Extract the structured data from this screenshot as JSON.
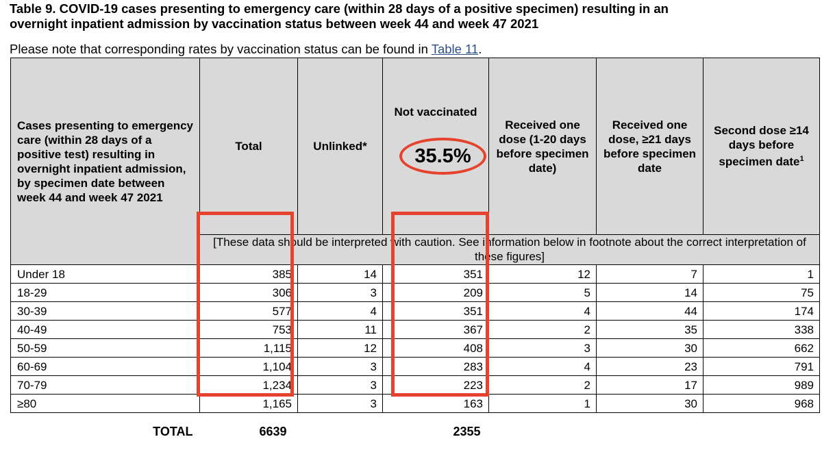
{
  "title_line1": "Table 9. COVID-19 cases presenting to emergency care (within 28 days of a positive specimen) resulting in an",
  "title_line2": "overnight inpatient admission by vaccination status between week 44 and week 47 2021",
  "note_text": "Please note that corresponding rates by vaccination status can be found in ",
  "note_link": "Table 11",
  "note_end": ".",
  "headers": {
    "col0": "Cases presenting to emergency care (within 28 days of a positive test) resulting in overnight inpatient admission, by specimen date between week 44 and week 47 2021",
    "col1": "Total",
    "col2": "Unlinked*",
    "col3": "Not vaccinated",
    "col4": "Received one dose (1-20 days before specimen date)",
    "col5": "Received one dose, ≥21 days before specimen date",
    "col6": "Second dose ≥14 days before specimen date",
    "col6_sup": "1"
  },
  "caution": "[These data should be interpreted with caution. See information below in footnote about the correct interpretation of these figures]",
  "rows": [
    {
      "age": "Under 18",
      "total": "385",
      "unlinked": "14",
      "not_vaccinated": "351",
      "one_dose_1_20": "12",
      "one_dose_21": "7",
      "second_dose": "1"
    },
    {
      "age": "18-29",
      "total": "306",
      "unlinked": "3",
      "not_vaccinated": "209",
      "one_dose_1_20": "5",
      "one_dose_21": "14",
      "second_dose": "75"
    },
    {
      "age": "30-39",
      "total": "577",
      "unlinked": "4",
      "not_vaccinated": "351",
      "one_dose_1_20": "4",
      "one_dose_21": "44",
      "second_dose": "174"
    },
    {
      "age": "40-49",
      "total": "753",
      "unlinked": "11",
      "not_vaccinated": "367",
      "one_dose_1_20": "2",
      "one_dose_21": "35",
      "second_dose": "338"
    },
    {
      "age": "50-59",
      "total": "1,115",
      "unlinked": "12",
      "not_vaccinated": "408",
      "one_dose_1_20": "3",
      "one_dose_21": "30",
      "second_dose": "662"
    },
    {
      "age": "60-69",
      "total": "1,104",
      "unlinked": "3",
      "not_vaccinated": "283",
      "one_dose_1_20": "4",
      "one_dose_21": "23",
      "second_dose": "791"
    },
    {
      "age": "70-79",
      "total": "1,234",
      "unlinked": "3",
      "not_vaccinated": "223",
      "one_dose_1_20": "2",
      "one_dose_21": "17",
      "second_dose": "989"
    },
    {
      "age": "≥80",
      "total": "1,165",
      "unlinked": "3",
      "not_vaccinated": "163",
      "one_dose_1_20": "1",
      "one_dose_21": "30",
      "second_dose": "968"
    }
  ],
  "total_label": "TOTAL",
  "total_value": "6639",
  "total_not_vaccinated": "2355",
  "annotation_percent": "35.5%",
  "highlight_color": "#e5432d",
  "header_bg": "#d9d9d9"
}
